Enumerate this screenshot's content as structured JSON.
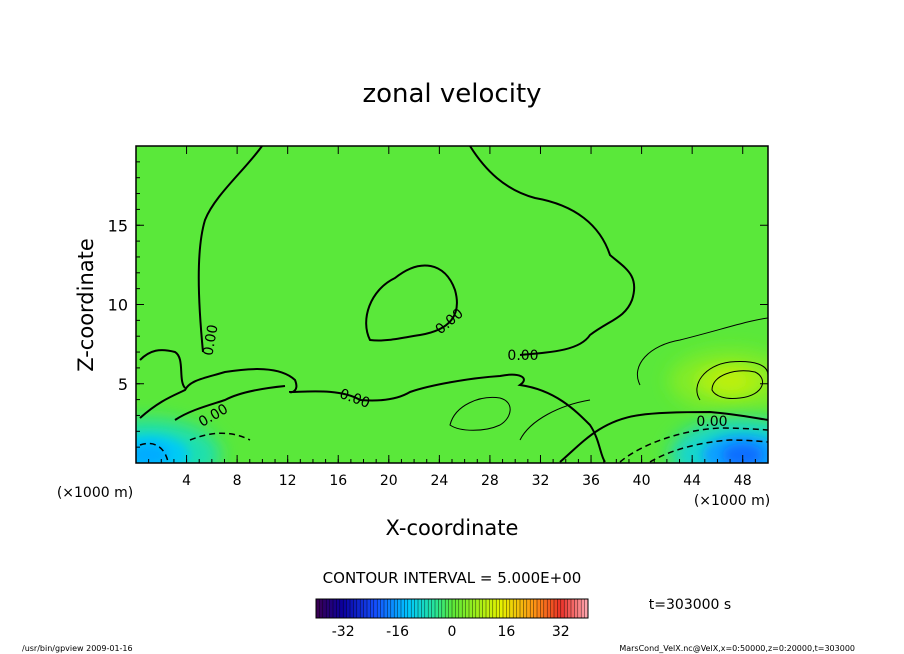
{
  "chart_data": {
    "type": "heatmap",
    "title": "zonal velocity",
    "xlabel": "X-coordinate",
    "ylabel": "Z-coordinate",
    "x_unit": "(×1000 m)",
    "y_unit": "(×1000 m)",
    "xlim": [
      0,
      50
    ],
    "ylim": [
      0,
      20
    ],
    "x_ticks": [
      4,
      8,
      12,
      16,
      20,
      24,
      28,
      32,
      36,
      40,
      44,
      48
    ],
    "y_ticks": [
      5,
      10,
      15
    ],
    "contour_interval_text": "CONTOUR INTERVAL = 5.000E+00",
    "contour_labels": [
      "0.00",
      "0.00",
      "0.00",
      "0.00",
      "0.00",
      "0.00"
    ],
    "time_text": "t=303000 s",
    "colorbar": {
      "range": [
        -40,
        40
      ],
      "ticks": [
        "-32",
        "-16",
        "0",
        "16",
        "32"
      ]
    },
    "features": [
      {
        "kind": "positive_max",
        "x": 47,
        "z": 5.2,
        "value": 10
      },
      {
        "kind": "negative_min",
        "x": 48,
        "z": 0.5,
        "value": -20
      },
      {
        "kind": "negative_min",
        "x": 1,
        "z": 0.5,
        "value": -15
      }
    ],
    "colors": {
      "background_field": "#5ae83a",
      "positive": "#e6f200",
      "negative": "#1e5cff"
    }
  },
  "footer": {
    "left": "/usr/bin/gpview   2009-01-16",
    "right": "MarsCond_VelX.nc@VelX,x=0:50000,z=0:20000,t=303000"
  }
}
